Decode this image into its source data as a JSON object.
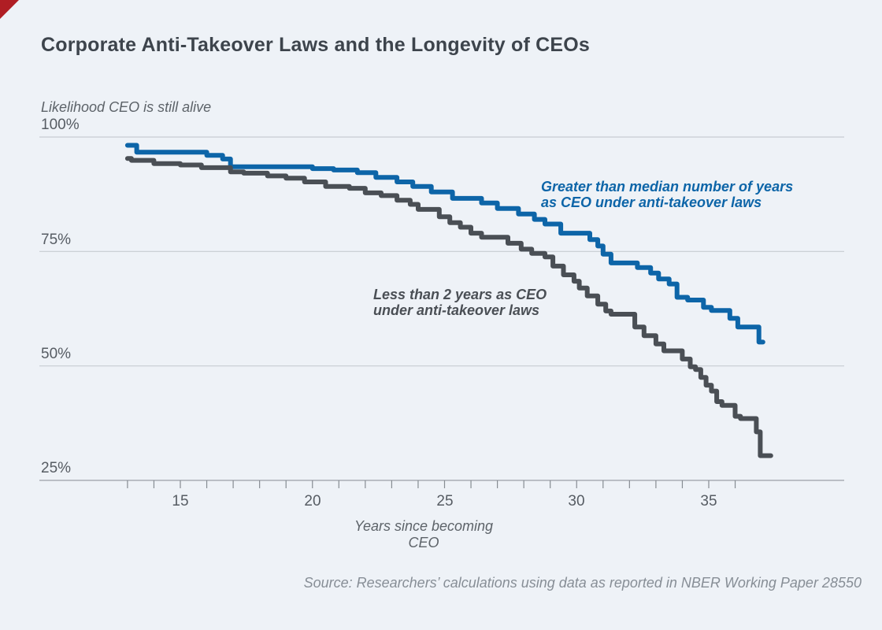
{
  "figure": {
    "title": "Corporate Anti-Takeover Laws and the Longevity of CEOs",
    "y_caption": "Likelihood CEO is still alive",
    "x_axis_title": "Years since becoming CEO",
    "source": "Source: Researchers’ calculations using data as reported in NBER Working Paper 28550"
  },
  "annotations": {
    "blue_line1": "Greater than median number of years",
    "blue_line2": "as CEO under anti-takeover laws",
    "gray_line1": "Less than 2 years as CEO",
    "gray_line2": "under anti-takeover laws"
  },
  "colors": {
    "background": "#eef2f7",
    "blue_series": "#0d65a8",
    "gray_series": "#4a4f55",
    "gridline": "#c7ccd2",
    "axis_line": "#9aa0a7",
    "tick": "#868c92",
    "corner_mark": "#b01e24"
  },
  "chart_data": {
    "type": "line",
    "title": "Corporate Anti-Takeover Laws and the Longevity of CEOs",
    "ylabel": "Likelihood CEO is still alive",
    "xlabel": "Years since becoming CEO",
    "ylim": [
      25,
      100
    ],
    "x_range": [
      13,
      37.5
    ],
    "grid": "horizontal-only",
    "legend_position": "inline-annotations",
    "gridlines_pct": [
      100,
      75,
      50,
      25
    ],
    "ytick_labels": [
      "100%",
      "75%",
      "50%",
      "25%"
    ],
    "xtick_labels": [
      "15",
      "20",
      "25",
      "30",
      "35"
    ],
    "xtick_label_years": [
      15,
      20,
      25,
      30,
      35
    ],
    "minor_tick_years": [
      13,
      14,
      15,
      16,
      17,
      18,
      19,
      20,
      21,
      22,
      23,
      24,
      25,
      26,
      27,
      28,
      29,
      30,
      31,
      32,
      33,
      34,
      35,
      36
    ],
    "series": [
      {
        "name": "Greater than median number of years as CEO under anti-takeover laws",
        "color": "#0d65a8",
        "step": true,
        "points": [
          [
            13.0,
            98.2
          ],
          [
            13.35,
            96.7
          ],
          [
            16.0,
            96.0
          ],
          [
            16.6,
            95.2
          ],
          [
            16.9,
            93.5
          ],
          [
            20.0,
            93.1
          ],
          [
            20.8,
            92.8
          ],
          [
            21.7,
            92.2
          ],
          [
            22.4,
            91.2
          ],
          [
            23.2,
            90.2
          ],
          [
            23.8,
            89.2
          ],
          [
            24.5,
            88.0
          ],
          [
            25.3,
            86.6
          ],
          [
            26.4,
            85.6
          ],
          [
            27.0,
            84.4
          ],
          [
            27.8,
            83.2
          ],
          [
            28.4,
            82.0
          ],
          [
            28.8,
            81.0
          ],
          [
            29.4,
            79.0
          ],
          [
            30.5,
            77.6
          ],
          [
            30.8,
            76.2
          ],
          [
            31.0,
            74.4
          ],
          [
            31.3,
            72.5
          ],
          [
            32.3,
            71.5
          ],
          [
            32.8,
            70.3
          ],
          [
            33.1,
            69.0
          ],
          [
            33.5,
            67.9
          ],
          [
            33.8,
            65.0
          ],
          [
            34.2,
            64.4
          ],
          [
            34.8,
            62.8
          ],
          [
            35.1,
            62.1
          ],
          [
            35.8,
            60.4
          ],
          [
            36.1,
            58.5
          ],
          [
            36.9,
            55.2
          ],
          [
            37.05,
            55.2
          ]
        ]
      },
      {
        "name": "Less than 2 years as CEO under anti-takeover laws",
        "color": "#4a4f55",
        "step": true,
        "points": [
          [
            13.0,
            95.3
          ],
          [
            13.15,
            94.9
          ],
          [
            14.0,
            94.2
          ],
          [
            15.0,
            93.9
          ],
          [
            15.8,
            93.3
          ],
          [
            16.9,
            92.4
          ],
          [
            17.4,
            92.1
          ],
          [
            18.3,
            91.5
          ],
          [
            19.0,
            91.0
          ],
          [
            19.7,
            90.2
          ],
          [
            20.5,
            89.2
          ],
          [
            21.4,
            88.8
          ],
          [
            22.0,
            87.8
          ],
          [
            22.6,
            87.2
          ],
          [
            23.2,
            86.2
          ],
          [
            23.7,
            85.3
          ],
          [
            24.0,
            84.2
          ],
          [
            24.8,
            82.6
          ],
          [
            25.2,
            81.3
          ],
          [
            25.6,
            80.3
          ],
          [
            26.0,
            79.0
          ],
          [
            26.4,
            78.1
          ],
          [
            27.4,
            76.8
          ],
          [
            27.9,
            75.5
          ],
          [
            28.3,
            74.6
          ],
          [
            28.8,
            73.8
          ],
          [
            29.1,
            71.8
          ],
          [
            29.5,
            69.9
          ],
          [
            29.9,
            68.5
          ],
          [
            30.1,
            67.0
          ],
          [
            30.4,
            65.3
          ],
          [
            30.8,
            63.5
          ],
          [
            31.1,
            62.0
          ],
          [
            31.3,
            61.3
          ],
          [
            32.2,
            58.5
          ],
          [
            32.55,
            56.6
          ],
          [
            33.0,
            54.8
          ],
          [
            33.3,
            53.3
          ],
          [
            34.0,
            51.5
          ],
          [
            34.3,
            49.8
          ],
          [
            34.5,
            49.2
          ],
          [
            34.7,
            47.5
          ],
          [
            34.9,
            45.8
          ],
          [
            35.1,
            44.5
          ],
          [
            35.3,
            42.2
          ],
          [
            35.5,
            41.4
          ],
          [
            36.0,
            39.0
          ],
          [
            36.2,
            38.5
          ],
          [
            36.8,
            35.6
          ],
          [
            36.95,
            30.4
          ],
          [
            37.35,
            30.4
          ]
        ]
      }
    ]
  }
}
